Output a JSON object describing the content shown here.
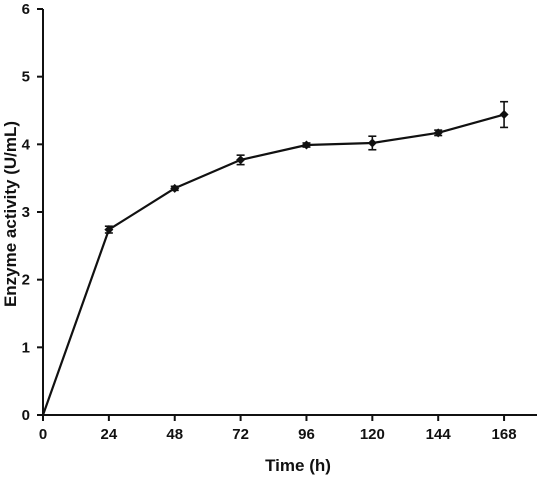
{
  "chart_data": {
    "type": "line",
    "title": "",
    "xlabel": "Time (h)",
    "ylabel": "Enzyme activity (U/mL)",
    "xlim": [
      0,
      180
    ],
    "ylim": [
      0,
      6
    ],
    "xticks": [
      0,
      24,
      48,
      72,
      96,
      120,
      144,
      168
    ],
    "yticks": [
      0,
      1,
      2,
      3,
      4,
      5,
      6
    ],
    "grid": false,
    "legend": "none",
    "series": [
      {
        "x": [
          0,
          24,
          48,
          72,
          96,
          120,
          144,
          168
        ],
        "y": [
          0,
          2.74,
          3.35,
          3.77,
          3.99,
          4.02,
          4.17,
          4.44
        ],
        "error": [
          0,
          0.05,
          0.03,
          0.07,
          0.03,
          0.1,
          0.04,
          0.19
        ],
        "color": "#111111",
        "marker": "diamond"
      }
    ]
  }
}
